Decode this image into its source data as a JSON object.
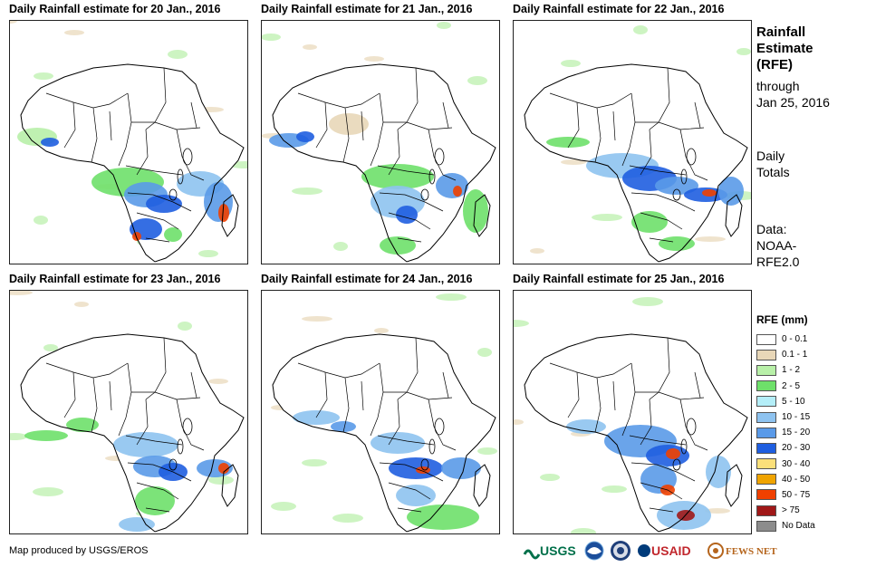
{
  "panels": [
    {
      "title": "Daily Rainfall estimate for 20 Jan., 2016"
    },
    {
      "title": "Daily Rainfall estimate for 21 Jan., 2016"
    },
    {
      "title": "Daily Rainfall estimate for 22 Jan., 2016"
    },
    {
      "title": "Daily Rainfall estimate for 23 Jan., 2016"
    },
    {
      "title": "Daily Rainfall estimate for 24 Jan., 2016"
    },
    {
      "title": "Daily Rainfall estimate for 25 Jan., 2016"
    }
  ],
  "side": {
    "title_lines": [
      "Rainfall",
      "Estimate",
      "(RFE)"
    ],
    "through_lines": [
      "through",
      "Jan 25, 2016"
    ],
    "totals_lines": [
      "Daily",
      "Totals"
    ],
    "data_lines": [
      "Data:",
      "NOAA-",
      "RFE2.0"
    ]
  },
  "legend": {
    "title": "RFE (mm)",
    "items": [
      {
        "label": "0 - 0.1",
        "color": "#ffffff"
      },
      {
        "label": "0.1 - 1",
        "color": "#e8d7b8"
      },
      {
        "label": "1 - 2",
        "color": "#b8f0a8"
      },
      {
        "label": "2 - 5",
        "color": "#6ee06a"
      },
      {
        "label": "5 - 10",
        "color": "#b4eef8"
      },
      {
        "label": "10 - 15",
        "color": "#8ec3f0"
      },
      {
        "label": "15 - 20",
        "color": "#5a9ae8"
      },
      {
        "label": "20 - 30",
        "color": "#1f5ee0"
      },
      {
        "label": "30 - 40",
        "color": "#fbe07a"
      },
      {
        "label": "40 - 50",
        "color": "#f0a400"
      },
      {
        "label": "50 - 75",
        "color": "#f04000"
      },
      {
        "label": "> 75",
        "color": "#a01818"
      },
      {
        "label": "No Data",
        "color": "#8c8c8c"
      }
    ]
  },
  "credit": "Map produced by USGS/EROS",
  "logos": {
    "usgs": "USGS",
    "usaid": "USAID",
    "fewsnet": "FEWS NET"
  }
}
